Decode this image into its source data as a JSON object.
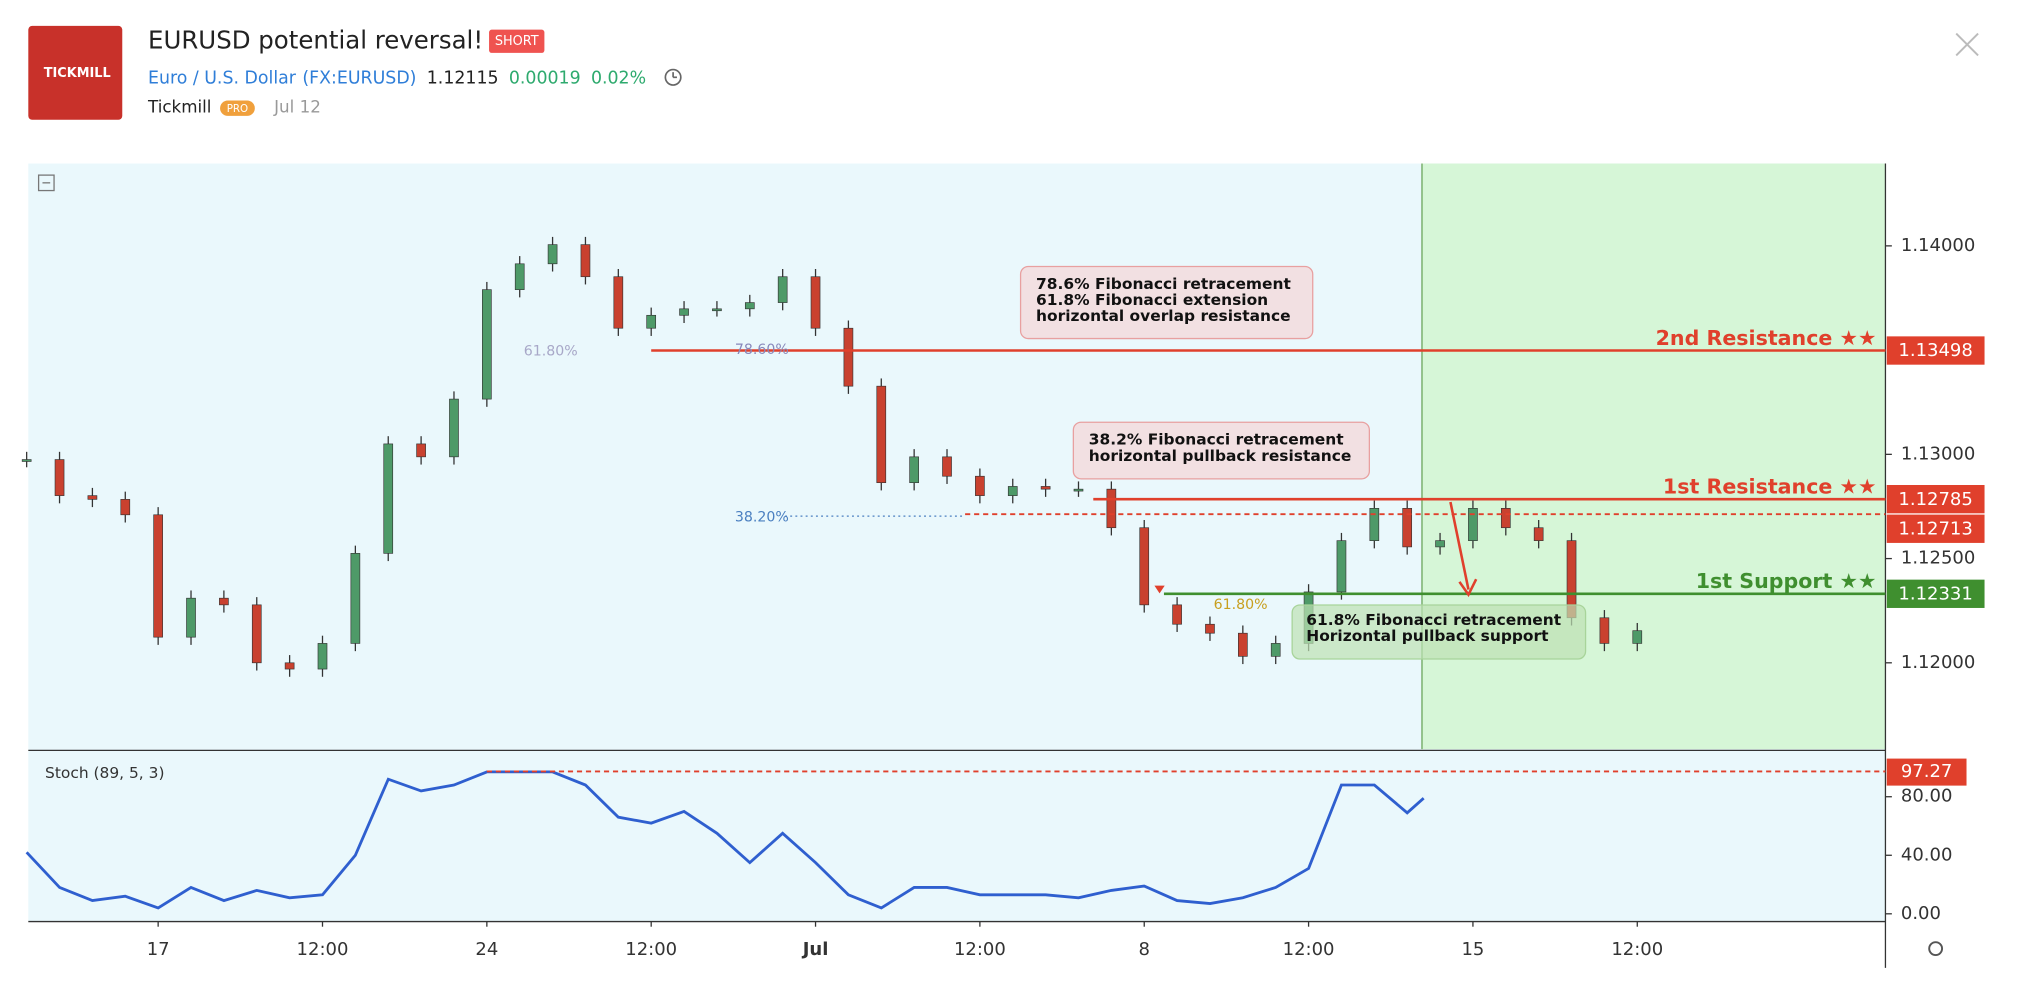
{
  "header": {
    "logo": "TICKMILL",
    "title": "EURUSD potential reversal!",
    "badge": "SHORT",
    "instrument": "Euro / U.S. Dollar",
    "symbol": "(FX:EURUSD)",
    "price": "1.12115",
    "change": "0.00019",
    "change_pct": "0.02%",
    "author": "Tickmill",
    "author_badge": "PRO",
    "date": "Jul 12"
  },
  "chart_data": {
    "type": "candlestick",
    "colors": {
      "up": "#4e9a68",
      "down": "#c9412f"
    },
    "xlim": [
      -0.79,
      10.51
    ],
    "xticks": [
      {
        "value": 0,
        "label": "17"
      },
      {
        "value": 1,
        "label": "12:00"
      },
      {
        "value": 2,
        "label": "24"
      },
      {
        "value": 3,
        "label": "12:00"
      },
      {
        "value": 4,
        "label": "Jul"
      },
      {
        "value": 5,
        "label": "12:00"
      },
      {
        "value": 6,
        "label": "8"
      },
      {
        "value": 7,
        "label": "12:00"
      },
      {
        "value": 8,
        "label": "15"
      },
      {
        "value": 9,
        "label": "12:00"
      }
    ],
    "ylim": [
      1.11586,
      1.14395
    ],
    "yticks": [
      {
        "value": 1.12,
        "label": "1.12000"
      },
      {
        "value": 1.125,
        "label": "1.12500"
      },
      {
        "value": 1.13,
        "label": "1.13000"
      },
      {
        "value": 1.14,
        "label": "1.14000"
      }
    ],
    "y2lim": [
      -5.3,
      109.9
    ],
    "y2ticks": [
      {
        "value": 0,
        "label": "0.00"
      },
      {
        "value": 40,
        "label": "40.00"
      },
      {
        "value": 80,
        "label": "80.00"
      }
    ],
    "x": [
      -0.8,
      -0.6,
      -0.4,
      -0.2,
      0,
      0.2,
      0.4,
      0.6,
      0.8,
      1,
      1.2,
      1.4,
      1.6,
      1.8,
      2,
      2.2,
      2.4,
      2.6,
      2.8,
      3,
      3.2,
      3.4,
      3.6,
      3.8,
      4,
      4.2,
      4.4,
      4.6,
      4.8,
      5,
      5.2,
      5.4,
      5.6,
      5.8,
      6,
      6.2,
      6.4,
      6.6,
      6.8,
      7,
      7.2,
      7.4,
      7.6,
      7.8,
      8,
      8.2,
      8.4,
      8.6,
      8.8,
      9
    ],
    "series": [
      {
        "name": "EURUSD",
        "values": [
          1.12975,
          1.12802,
          1.12784,
          1.1271,
          1.12123,
          1.1231,
          1.12278,
          1.12,
          1.1197,
          1.12093,
          1.12525,
          1.1305,
          1.12988,
          1.13265,
          1.1379,
          1.13914,
          1.14006,
          1.13852,
          1.13605,
          1.13667,
          1.13698,
          1.13698,
          1.13728,
          1.13852,
          1.13605,
          1.13327,
          1.12864,
          1.12988,
          1.12895,
          1.12802,
          1.12846,
          1.12833,
          1.12833,
          1.12648,
          1.12278,
          1.12185,
          1.12142,
          1.12031,
          1.12093,
          1.1234,
          1.12586,
          1.12741,
          1.12556,
          1.12586,
          1.12741,
          1.12648,
          1.12586,
          1.12216,
          1.12093,
          1.12154
        ]
      },
      {
        "name": "Stoch (89, 5, 3)",
        "type": "line",
        "axis": "y2",
        "color": "#2f5fcf",
        "x": [
          -0.8,
          -0.6,
          -0.4,
          -0.2,
          0,
          0.2,
          0.4,
          0.6,
          0.8,
          1,
          1.2,
          1.4,
          1.6,
          1.8,
          2,
          2.2,
          2.4,
          2.6,
          2.8,
          3,
          3.2,
          3.4,
          3.6,
          3.8,
          4,
          4.2,
          4.4,
          4.6,
          4.8,
          5,
          5.2,
          5.4,
          5.6,
          5.8,
          6,
          6.2,
          6.4,
          6.6,
          6.8,
          7,
          7.2,
          7.4,
          7.6,
          7.7
        ],
        "values": [
          42,
          18,
          9,
          12,
          4,
          18,
          9,
          16,
          11,
          13,
          40,
          92,
          84,
          88,
          97,
          97,
          97,
          88,
          66,
          62,
          70,
          55,
          35,
          55,
          35,
          13,
          4,
          18,
          18,
          13,
          13,
          13,
          11,
          16,
          19,
          9,
          7,
          11,
          18,
          31,
          88,
          88,
          69,
          79
        ]
      }
    ],
    "levels": [
      {
        "name": "2nd Resistance ★★",
        "value": 1.13498,
        "start": 3.0,
        "color": "#e0402c",
        "style": "solid"
      },
      {
        "name": "1st Resistance ★★",
        "value": 1.12785,
        "start": 5.69,
        "color": "#e0402c",
        "style": "solid"
      },
      {
        "value": 1.12713,
        "start": 4.91,
        "color": "#e0402c",
        "style": "dashed"
      },
      {
        "name": "1st Support ★★",
        "value": 1.12331,
        "start": 6.12,
        "color": "#3f8f2f",
        "style": "solid"
      }
    ],
    "stoch_level": {
      "value": 97.27,
      "start": 2.0,
      "color": "#e0402c"
    },
    "projection_start": 7.69,
    "fib_labels": [
      "61.80%",
      "78.60%",
      "38.20%",
      "61.80%"
    ],
    "annotations": [
      {
        "lines": [
          "78.6% Fibonacci retracement",
          "61.8% Fibonacci extension",
          "horizontal overlap resistance"
        ]
      },
      {
        "lines": [
          "38.2% Fibonacci retracement",
          "horizontal pullback resistance"
        ]
      },
      {
        "lines": [
          "61.8% Fibonacci retracement",
          "Horizontal pullback support"
        ]
      }
    ]
  }
}
